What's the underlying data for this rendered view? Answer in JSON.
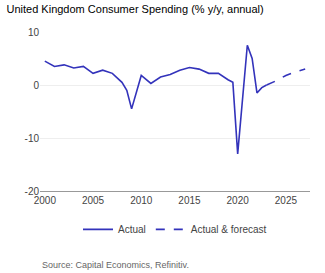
{
  "chart_data": {
    "type": "line",
    "title": "United Kingdom Consumer Spending (% y/y, annual)",
    "annotations": [
      "Source: Capital Economics, Refinitiv."
    ],
    "series": [
      {
        "name": "Actual",
        "color": "#3333BB",
        "line_style": "solid",
        "x": [
          2000,
          2001,
          2002,
          2003,
          2004,
          2005,
          2006,
          2007,
          2008,
          2008.5,
          2009,
          2010,
          2011,
          2012,
          2013,
          2014,
          2015,
          2016,
          2017,
          2018,
          2019,
          2019.5,
          2020,
          2021,
          2021.5,
          2022,
          2022.5,
          2023
        ],
        "values": [
          4.5,
          3.5,
          3.8,
          3.2,
          3.5,
          2.2,
          2.8,
          2.2,
          0.5,
          -1.0,
          -4.5,
          1.8,
          0.3,
          1.5,
          2.0,
          2.8,
          3.3,
          3.0,
          2.2,
          2.2,
          1.0,
          0.5,
          -13.0,
          7.5,
          5.0,
          -1.5,
          -0.5,
          0.0
        ]
      },
      {
        "name": "Actual & forecast",
        "color": "#3333BB",
        "line_style": "dashed",
        "x": [
          2023,
          2024,
          2025,
          2026,
          2027
        ],
        "values": [
          0.0,
          0.8,
          1.8,
          2.5,
          3.0
        ]
      }
    ],
    "xlim": [
      1999.5,
      2027.5
    ],
    "xticks": [
      2000,
      2005,
      2010,
      2015,
      2020,
      2025
    ],
    "ylim": [
      -20,
      10
    ],
    "yticks": [
      -20,
      -10,
      0,
      10
    ],
    "grid": "y",
    "legend": "bottom"
  }
}
